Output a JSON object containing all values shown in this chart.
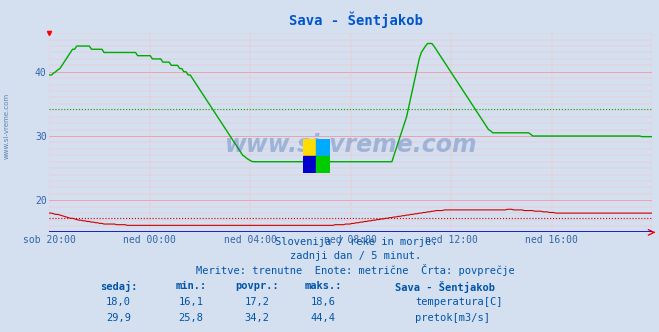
{
  "title": "Sava - Šentjakob",
  "bg_color": "#d4dff0",
  "plot_bg_color": "#d4dff0",
  "x_labels": [
    "sob 20:00",
    "ned 00:00",
    "ned 04:00",
    "ned 08:00",
    "ned 12:00",
    "ned 16:00"
  ],
  "y_min": 15,
  "y_max": 46,
  "y_ticks": [
    20,
    30,
    40
  ],
  "temp_avg": 17.2,
  "flow_avg": 34.2,
  "temp_color": "#cc0000",
  "flow_color": "#00aa00",
  "watermark": "www.si-vreme.com",
  "subtitle1": "Slovenija / reke in morje.",
  "subtitle2": "zadnji dan / 5 minut.",
  "subtitle3": "Meritve: trenutne  Enote: metrične  Črta: povprečje",
  "legend_title": "Sava - Šentjakob",
  "label_temp": "temperatura[C]",
  "label_flow": "pretok[m3/s]",
  "table_headers": [
    "sedaj:",
    "min.:",
    "povpr.:",
    "maks.:"
  ],
  "temp_row": [
    "18,0",
    "16,1",
    "17,2",
    "18,6"
  ],
  "flow_row": [
    "29,9",
    "25,8",
    "34,2",
    "44,4"
  ],
  "text_color": "#0055aa",
  "title_color": "#0055cc",
  "axis_label_color": "#3366aa",
  "n_points": 288,
  "temp_profile": [
    18.0,
    18.0,
    17.9,
    17.8,
    17.8,
    17.7,
    17.6,
    17.5,
    17.4,
    17.3,
    17.2,
    17.2,
    17.1,
    17.0,
    16.9,
    16.9,
    16.8,
    16.8,
    16.7,
    16.7,
    16.6,
    16.6,
    16.5,
    16.5,
    16.4,
    16.4,
    16.3,
    16.3,
    16.3,
    16.3,
    16.3,
    16.3,
    16.2,
    16.2,
    16.2,
    16.2,
    16.2,
    16.1,
    16.1,
    16.1,
    16.1,
    16.1,
    16.1,
    16.1,
    16.1,
    16.1,
    16.1,
    16.1,
    16.1,
    16.1,
    16.1,
    16.1,
    16.1,
    16.1,
    16.1,
    16.1,
    16.1,
    16.1,
    16.1,
    16.1,
    16.1,
    16.1,
    16.1,
    16.1,
    16.1,
    16.1,
    16.1,
    16.1,
    16.1,
    16.1,
    16.1,
    16.1,
    16.1,
    16.1,
    16.1,
    16.1,
    16.1,
    16.1,
    16.1,
    16.1,
    16.1,
    16.1,
    16.1,
    16.1,
    16.1,
    16.1,
    16.1,
    16.1,
    16.1,
    16.1,
    16.1,
    16.1,
    16.1,
    16.1,
    16.1,
    16.1,
    16.1,
    16.1,
    16.1,
    16.1,
    16.1,
    16.1,
    16.1,
    16.1,
    16.1,
    16.1,
    16.1,
    16.1,
    16.1,
    16.1,
    16.1,
    16.1,
    16.1,
    16.1,
    16.1,
    16.1,
    16.1,
    16.1,
    16.1,
    16.1,
    16.1,
    16.1,
    16.1,
    16.1,
    16.1,
    16.1,
    16.1,
    16.1,
    16.1,
    16.1,
    16.1,
    16.1,
    16.1,
    16.1,
    16.1,
    16.1,
    16.2,
    16.2,
    16.2,
    16.2,
    16.2,
    16.3,
    16.3,
    16.3,
    16.4,
    16.4,
    16.5,
    16.5,
    16.6,
    16.6,
    16.7,
    16.7,
    16.8,
    16.8,
    16.9,
    16.9,
    17.0,
    17.0,
    17.1,
    17.1,
    17.2,
    17.2,
    17.3,
    17.3,
    17.4,
    17.4,
    17.5,
    17.5,
    17.6,
    17.6,
    17.7,
    17.7,
    17.8,
    17.8,
    17.9,
    17.9,
    18.0,
    18.0,
    18.1,
    18.1,
    18.2,
    18.2,
    18.3,
    18.3,
    18.4,
    18.4,
    18.4,
    18.4,
    18.5,
    18.5,
    18.5,
    18.5,
    18.5,
    18.5,
    18.5,
    18.5,
    18.5,
    18.5,
    18.5,
    18.5,
    18.5,
    18.5,
    18.5,
    18.5,
    18.5,
    18.5,
    18.5,
    18.5,
    18.5,
    18.5,
    18.5,
    18.5,
    18.5,
    18.5,
    18.5,
    18.5,
    18.5,
    18.5,
    18.6,
    18.6,
    18.6,
    18.5,
    18.5,
    18.5,
    18.5,
    18.5,
    18.4,
    18.4,
    18.4,
    18.4,
    18.4,
    18.3,
    18.3,
    18.3,
    18.3,
    18.2,
    18.2,
    18.2,
    18.1,
    18.1,
    18.1,
    18.0,
    18.0,
    18.0,
    18.0,
    18.0,
    18.0,
    18.0,
    18.0,
    18.0,
    18.0,
    18.0,
    18.0,
    18.0,
    18.0,
    18.0,
    18.0,
    18.0,
    18.0,
    18.0,
    18.0,
    18.0,
    18.0,
    18.0,
    18.0,
    18.0,
    18.0,
    18.0,
    18.0,
    18.0,
    18.0,
    18.0,
    18.0,
    18.0,
    18.0,
    18.0,
    18.0,
    18.0,
    18.0,
    18.0,
    18.0,
    18.0,
    18.0,
    18.0,
    18.0,
    18.0,
    18.0,
    18.0
  ],
  "flow_profile": [
    39.5,
    39.5,
    39.8,
    40.0,
    40.3,
    40.5,
    41.0,
    41.5,
    42.0,
    42.5,
    43.0,
    43.5,
    43.5,
    44.0,
    44.0,
    44.0,
    44.0,
    44.0,
    44.0,
    44.0,
    43.5,
    43.5,
    43.5,
    43.5,
    43.5,
    43.5,
    43.0,
    43.0,
    43.0,
    43.0,
    43.0,
    43.0,
    43.0,
    43.0,
    43.0,
    43.0,
    43.0,
    43.0,
    43.0,
    43.0,
    43.0,
    43.0,
    42.5,
    42.5,
    42.5,
    42.5,
    42.5,
    42.5,
    42.5,
    42.0,
    42.0,
    42.0,
    42.0,
    42.0,
    41.5,
    41.5,
    41.5,
    41.5,
    41.0,
    41.0,
    41.0,
    41.0,
    40.5,
    40.5,
    40.0,
    40.0,
    39.5,
    39.5,
    39.0,
    38.5,
    38.0,
    37.5,
    37.0,
    36.5,
    36.0,
    35.5,
    35.0,
    34.5,
    34.0,
    33.5,
    33.0,
    32.5,
    32.0,
    31.5,
    31.0,
    30.5,
    30.0,
    29.5,
    29.0,
    28.5,
    28.0,
    27.5,
    27.0,
    26.8,
    26.5,
    26.3,
    26.1,
    26.0,
    26.0,
    26.0,
    26.0,
    26.0,
    26.0,
    26.0,
    26.0,
    26.0,
    26.0,
    26.0,
    26.0,
    26.0,
    26.0,
    26.0,
    26.0,
    26.0,
    26.0,
    26.0,
    26.0,
    26.0,
    26.0,
    26.0,
    26.0,
    26.0,
    26.0,
    26.0,
    26.0,
    26.0,
    26.0,
    26.0,
    26.0,
    26.0,
    26.0,
    26.0,
    26.0,
    26.0,
    26.0,
    26.0,
    26.0,
    26.0,
    26.0,
    26.0,
    26.0,
    26.0,
    26.0,
    26.0,
    26.0,
    26.0,
    26.0,
    26.0,
    26.0,
    26.0,
    26.0,
    26.0,
    26.0,
    26.0,
    26.0,
    26.0,
    26.0,
    26.0,
    26.0,
    26.0,
    26.0,
    26.0,
    26.0,
    26.0,
    27.0,
    28.0,
    29.0,
    30.0,
    31.0,
    32.0,
    33.0,
    34.5,
    36.0,
    37.5,
    39.0,
    40.5,
    42.0,
    43.0,
    43.5,
    44.0,
    44.4,
    44.4,
    44.4,
    44.0,
    43.5,
    43.0,
    42.5,
    42.0,
    41.5,
    41.0,
    40.5,
    40.0,
    39.5,
    39.0,
    38.5,
    38.0,
    37.5,
    37.0,
    36.5,
    36.0,
    35.5,
    35.0,
    34.5,
    34.0,
    33.5,
    33.0,
    32.5,
    32.0,
    31.5,
    31.0,
    30.8,
    30.5,
    30.5,
    30.5,
    30.5,
    30.5,
    30.5,
    30.5,
    30.5,
    30.5,
    30.5,
    30.5,
    30.5,
    30.5,
    30.5,
    30.5,
    30.5,
    30.5,
    30.5,
    30.3,
    30.0,
    30.0,
    30.0,
    30.0,
    30.0,
    30.0,
    30.0,
    30.0,
    30.0,
    30.0,
    30.0,
    30.0,
    30.0,
    30.0,
    30.0,
    30.0,
    30.0,
    30.0,
    30.0,
    30.0,
    30.0,
    30.0,
    30.0,
    30.0,
    30.0,
    30.0,
    30.0,
    30.0,
    30.0,
    30.0,
    30.0,
    30.0,
    30.0,
    30.0,
    30.0,
    30.0,
    30.0,
    30.0,
    30.0,
    30.0,
    30.0,
    30.0,
    30.0,
    30.0,
    30.0,
    30.0,
    30.0,
    30.0,
    30.0,
    30.0,
    30.0,
    30.0,
    29.9,
    29.9,
    29.9,
    29.9,
    29.9,
    29.9
  ]
}
